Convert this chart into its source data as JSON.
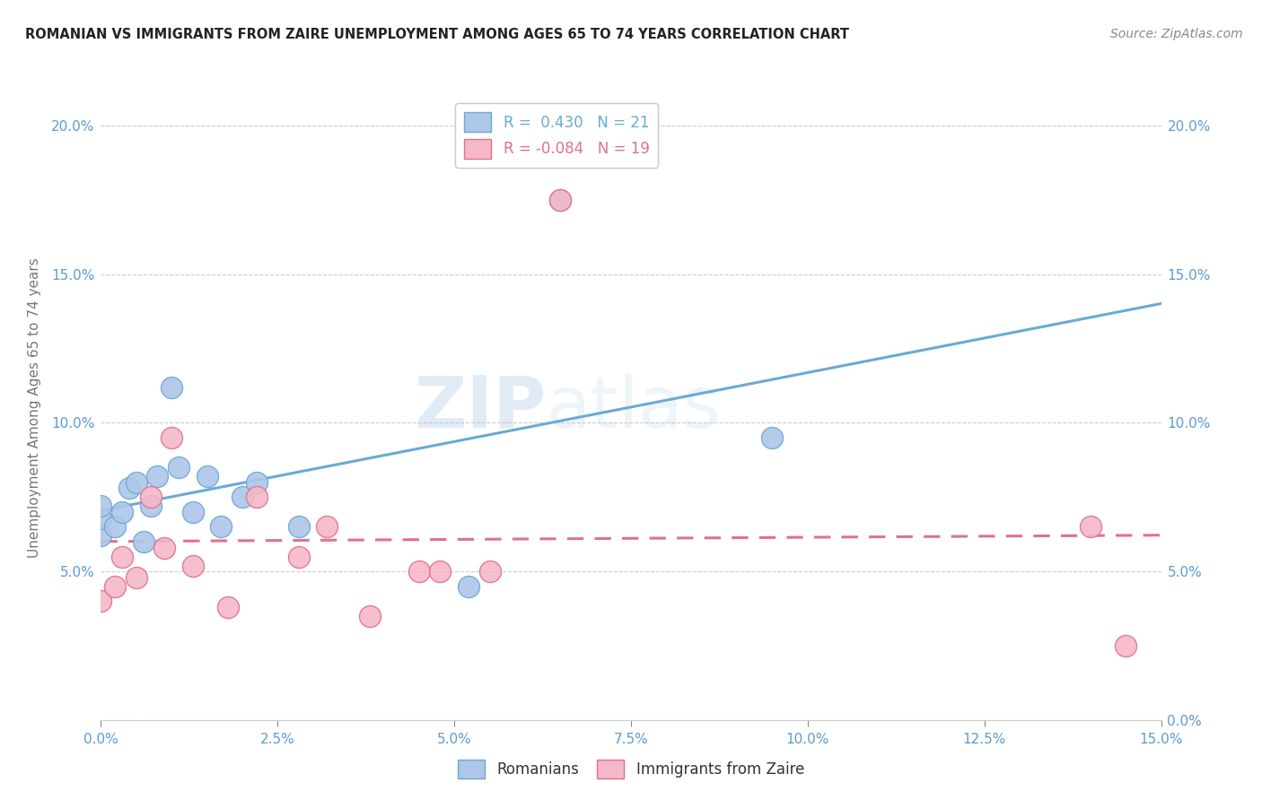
{
  "title": "ROMANIAN VS IMMIGRANTS FROM ZAIRE UNEMPLOYMENT AMONG AGES 65 TO 74 YEARS CORRELATION CHART",
  "source": "Source: ZipAtlas.com",
  "ylabel": "Unemployment Among Ages 65 to 74 years",
  "xlabel_vals": [
    0.0,
    2.5,
    5.0,
    7.5,
    10.0,
    12.5,
    15.0
  ],
  "ylabel_vals": [
    0.0,
    5.0,
    10.0,
    15.0,
    20.0
  ],
  "xlim": [
    0.0,
    15.0
  ],
  "ylim": [
    0.0,
    21.0
  ],
  "romanian_R": 0.43,
  "romanian_N": 21,
  "zaire_R": -0.084,
  "zaire_N": 19,
  "romanian_color": "#aec6e8",
  "romanian_edge": "#6aaad4",
  "zaire_color": "#f4b8c8",
  "zaire_edge": "#e07090",
  "trend_romanian_color": "#6aaad4",
  "trend_zaire_color": "#e07090",
  "watermark_zip": "ZIP",
  "watermark_atlas": "atlas",
  "romanian_x": [
    0.0,
    0.0,
    0.0,
    0.2,
    0.3,
    0.4,
    0.5,
    0.6,
    0.7,
    0.8,
    1.0,
    1.1,
    1.3,
    1.5,
    1.7,
    2.0,
    2.2,
    2.8,
    5.2,
    9.5,
    6.5
  ],
  "romanian_y": [
    6.2,
    6.8,
    7.2,
    6.5,
    7.0,
    7.8,
    8.0,
    6.0,
    7.2,
    8.2,
    11.2,
    8.5,
    7.0,
    8.2,
    6.5,
    7.5,
    8.0,
    6.5,
    4.5,
    9.5,
    17.5
  ],
  "zaire_x": [
    0.0,
    0.2,
    0.3,
    0.5,
    0.7,
    0.9,
    1.0,
    1.3,
    1.8,
    2.2,
    2.8,
    3.2,
    3.8,
    4.5,
    4.8,
    5.5,
    6.5,
    14.0,
    14.5
  ],
  "zaire_y": [
    4.0,
    4.5,
    5.5,
    4.8,
    7.5,
    5.8,
    9.5,
    5.2,
    3.8,
    7.5,
    5.5,
    6.5,
    3.5,
    5.0,
    5.0,
    5.0,
    17.5,
    6.5,
    2.5
  ]
}
